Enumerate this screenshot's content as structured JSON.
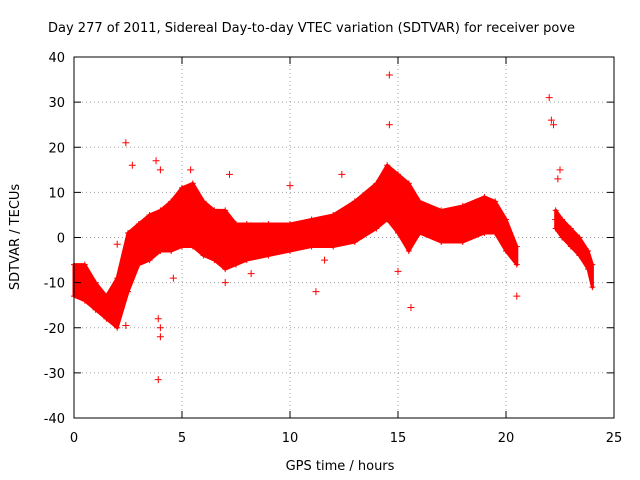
{
  "chart_data": {
    "type": "scatter",
    "title": "Day 277 of 2011, Sidereal Day-to-day VTEC variation (SDTVAR) for receiver pove",
    "xlabel": "GPS time / hours",
    "ylabel": "SDTVAR / TECUs",
    "xlim": [
      0,
      25
    ],
    "ylim": [
      -40,
      40
    ],
    "x_ticks": [
      0,
      5,
      10,
      15,
      20,
      25
    ],
    "y_ticks": [
      -40,
      -30,
      -20,
      -10,
      0,
      10,
      20,
      30,
      40
    ],
    "x_tick_labels": [
      "0",
      "5",
      "10",
      "15",
      "20",
      "25"
    ],
    "y_tick_labels": [
      "-40",
      "-30",
      "-20",
      "-10",
      "0",
      "10",
      "20",
      "30",
      "40"
    ],
    "grid": true,
    "marker": "+",
    "series": [
      {
        "name": "SDTVAR",
        "color": "#ff0000",
        "band": {
          "x": [
            0.0,
            0.5,
            1.0,
            1.5,
            2.0,
            2.5,
            3.0,
            3.5,
            4.0,
            4.5,
            5.0,
            5.5,
            6.0,
            6.5,
            7.0,
            7.5,
            8.0,
            9.0,
            10.0,
            11.0,
            12.0,
            13.0,
            14.0,
            14.5,
            15.0,
            15.5,
            16.0,
            17.0,
            18.0,
            19.0,
            19.5,
            20.0,
            20.5
          ],
          "y_low": [
            -13,
            -14,
            -16,
            -18,
            -20,
            -12,
            -6,
            -5,
            -3,
            -3,
            -2,
            -2,
            -4,
            -5,
            -7,
            -6,
            -5,
            -4,
            -3,
            -2,
            -2,
            -1,
            2,
            4,
            1,
            -3,
            1,
            -1,
            -1,
            1,
            1,
            -3,
            -6
          ],
          "y_high": [
            -6,
            -6,
            -10,
            -13,
            -9,
            1,
            3,
            5,
            6,
            8,
            11,
            12,
            8,
            6,
            6,
            3,
            3,
            3,
            3,
            4,
            5,
            8,
            12,
            16,
            14,
            12,
            8,
            6,
            7,
            9,
            8,
            4,
            -2
          ]
        },
        "band2": {
          "x": [
            22.3,
            22.6,
            23.0,
            23.4,
            23.8,
            24.0
          ],
          "y_low": [
            2,
            0,
            -2,
            -4,
            -7,
            -11
          ],
          "y_high": [
            6,
            4,
            2,
            0,
            -3,
            -6
          ]
        },
        "outliers": [
          {
            "x": 14.6,
            "y": 36
          },
          {
            "x": 22.0,
            "y": 31
          },
          {
            "x": 22.1,
            "y": 26
          },
          {
            "x": 22.2,
            "y": 25
          },
          {
            "x": 14.6,
            "y": 25
          },
          {
            "x": 2.4,
            "y": 21
          },
          {
            "x": 2.7,
            "y": 16
          },
          {
            "x": 3.8,
            "y": 17
          },
          {
            "x": 4.0,
            "y": 15
          },
          {
            "x": 5.4,
            "y": 15
          },
          {
            "x": 7.2,
            "y": 14
          },
          {
            "x": 12.4,
            "y": 14
          },
          {
            "x": 22.5,
            "y": 15
          },
          {
            "x": 22.4,
            "y": 13
          },
          {
            "x": 10.0,
            "y": 11.5
          },
          {
            "x": 3.9,
            "y": -18
          },
          {
            "x": 4.0,
            "y": -20
          },
          {
            "x": 4.0,
            "y": -22
          },
          {
            "x": 2.4,
            "y": -19.5
          },
          {
            "x": 3.9,
            "y": -31.5
          },
          {
            "x": 11.2,
            "y": -12
          },
          {
            "x": 15.6,
            "y": -15.5
          },
          {
            "x": 20.5,
            "y": -13
          },
          {
            "x": 15.0,
            "y": -7.5
          },
          {
            "x": 8.2,
            "y": -8
          },
          {
            "x": 11.6,
            "y": -5
          },
          {
            "x": 2.0,
            "y": -11
          },
          {
            "x": 1.8,
            "y": -17
          },
          {
            "x": 4.6,
            "y": -9
          },
          {
            "x": 7.0,
            "y": -10
          },
          {
            "x": 22.3,
            "y": 4
          },
          {
            "x": 2.0,
            "y": -1.5
          },
          {
            "x": 6.3,
            "y": -4
          }
        ]
      }
    ]
  }
}
